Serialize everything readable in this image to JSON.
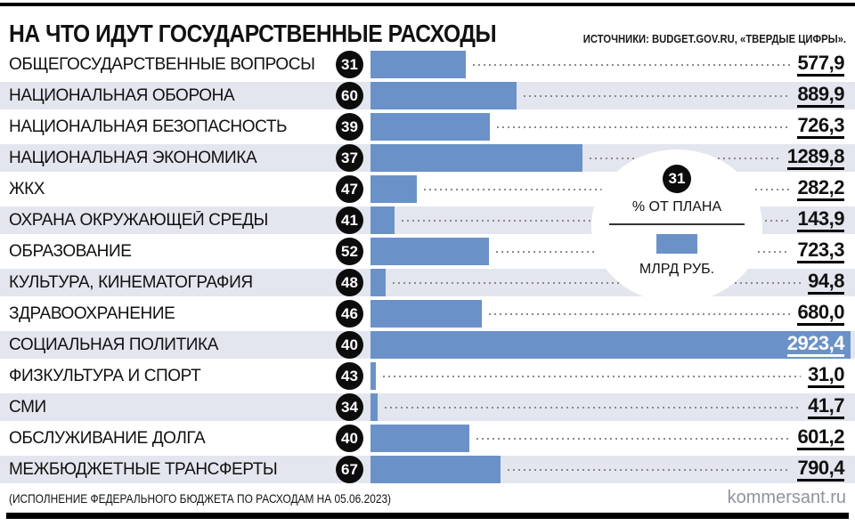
{
  "header": {
    "title": "НА ЧТО ИДУТ ГОСУДАРСТВЕННЫЕ РАСХОДЫ",
    "source": "ИСТОЧНИКИ: BUDGET.GOV.RU, «ТВЕРДЫЕ ЦИФРЫ»."
  },
  "legend": {
    "percent_value": "31",
    "percent_label": "% ОТ ПЛАНА",
    "unit_label": "МЛРД РУБ."
  },
  "footer": {
    "note": "(ИСПОЛНЕНИЕ ФЕДЕРАЛЬНОГО БЮДЖЕТА ПО РАСХОДАМ НА 05.06.2023)",
    "site": "kommersant.ru"
  },
  "colors": {
    "bar": "#6a92c8",
    "row_alt": "#e3e6ee",
    "badge": "#0c0c0c"
  },
  "chart_data": {
    "type": "bar",
    "orientation": "horizontal",
    "title": "НА ЧТО ИДУТ ГОСУДАРСТВЕННЫЕ РАСХОДЫ",
    "unit": "МЛРД РУБ.",
    "percent_unit": "% ОТ ПЛАНА",
    "max_value": 2923.4,
    "legend_position": "middle-right",
    "rows": [
      {
        "label": "ОБЩЕГОСУДАРСТВЕННЫЕ ВОПРОСЫ",
        "percent_of_plan": 31,
        "value": 577.9,
        "value_display": "577,9",
        "highlight": false
      },
      {
        "label": "НАЦИОНАЛЬНАЯ ОБОРОНА",
        "percent_of_plan": 60,
        "value": 889.9,
        "value_display": "889,9",
        "highlight": false
      },
      {
        "label": "НАЦИОНАЛЬНАЯ БЕЗОПАСНОСТЬ",
        "percent_of_plan": 39,
        "value": 726.3,
        "value_display": "726,3",
        "highlight": false
      },
      {
        "label": "НАЦИОНАЛЬНАЯ ЭКОНОМИКА",
        "percent_of_plan": 37,
        "value": 1289.8,
        "value_display": "1289,8",
        "highlight": false
      },
      {
        "label": "ЖКХ",
        "percent_of_plan": 47,
        "value": 282.2,
        "value_display": "282,2",
        "highlight": false
      },
      {
        "label": "ОХРАНА ОКРУЖАЮЩЕЙ СРЕДЫ",
        "percent_of_plan": 41,
        "value": 143.9,
        "value_display": "143,9",
        "highlight": false
      },
      {
        "label": "ОБРАЗОВАНИЕ",
        "percent_of_plan": 52,
        "value": 723.3,
        "value_display": "723,3",
        "highlight": false
      },
      {
        "label": "КУЛЬТУРА, КИНЕМАТОГРАФИЯ",
        "percent_of_plan": 48,
        "value": 94.8,
        "value_display": "94,8",
        "highlight": false
      },
      {
        "label": "ЗДРАВООХРАНЕНИЕ",
        "percent_of_plan": 46,
        "value": 680.0,
        "value_display": "680,0",
        "highlight": false
      },
      {
        "label": "СОЦИАЛЬНАЯ ПОЛИТИКА",
        "percent_of_plan": 40,
        "value": 2923.4,
        "value_display": "2923,4",
        "highlight": true
      },
      {
        "label": "ФИЗКУЛЬТУРА И СПОРТ",
        "percent_of_plan": 43,
        "value": 31.0,
        "value_display": "31,0",
        "highlight": false
      },
      {
        "label": "СМИ",
        "percent_of_plan": 34,
        "value": 41.7,
        "value_display": "41,7",
        "highlight": false
      },
      {
        "label": "ОБСЛУЖИВАНИЕ ДОЛГА",
        "percent_of_plan": 40,
        "value": 601.2,
        "value_display": "601,2",
        "highlight": false
      },
      {
        "label": "МЕЖБЮДЖЕТНЫЕ ТРАНСФЕРТЫ",
        "percent_of_plan": 67,
        "value": 790.4,
        "value_display": "790,4",
        "highlight": false
      }
    ]
  }
}
